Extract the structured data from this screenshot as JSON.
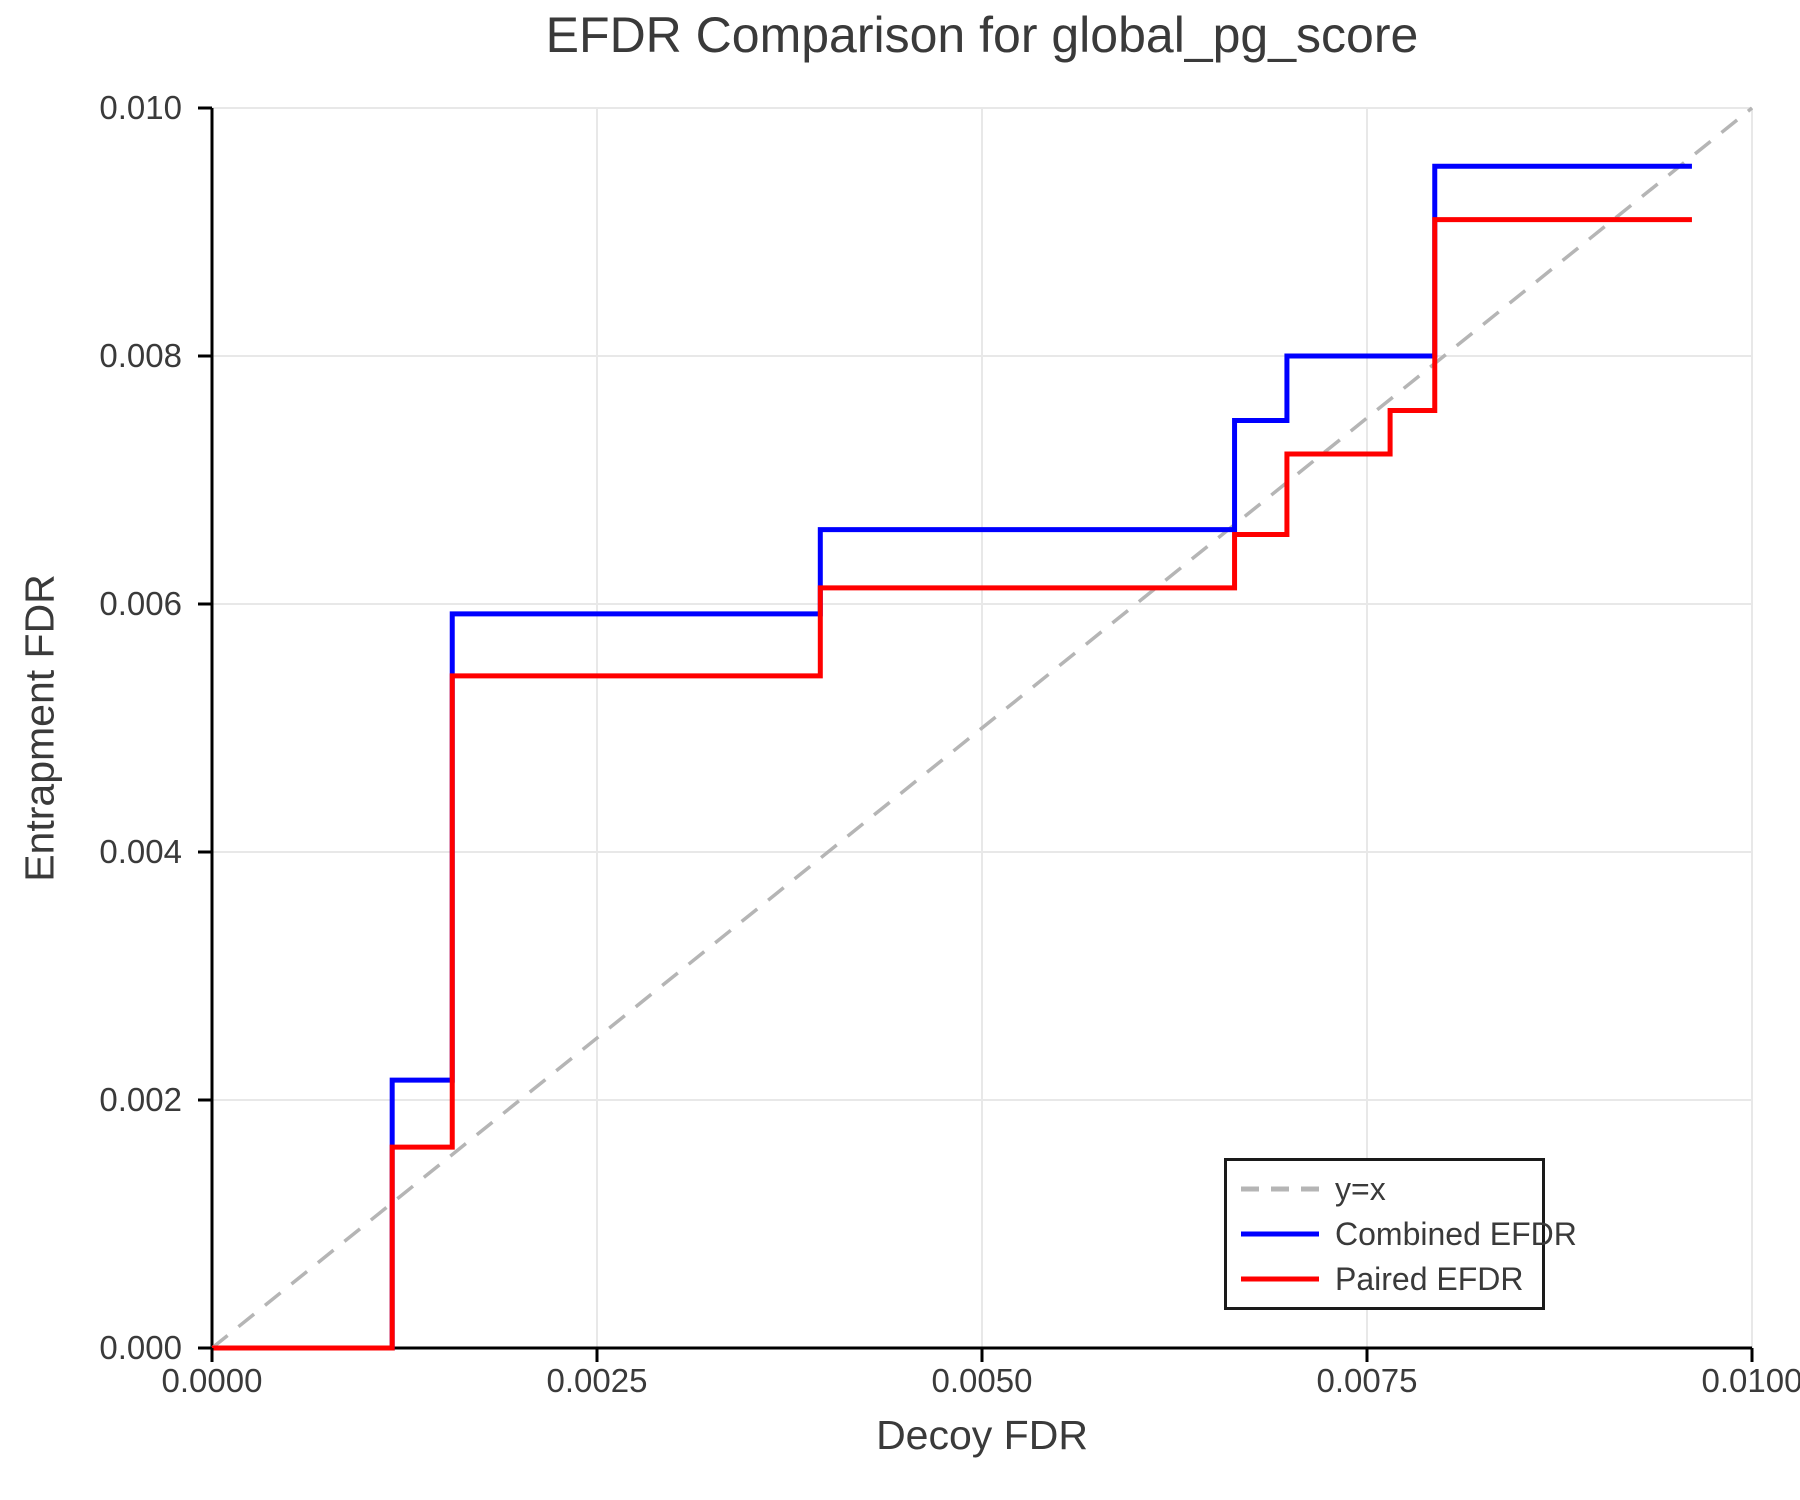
{
  "page": {
    "background": "#ffffff"
  },
  "chart_data": {
    "type": "line",
    "title": "EFDR Comparison for global_pg_score",
    "xlabel": "Decoy FDR",
    "ylabel": "Entrapment FDR",
    "xlim": [
      0.0,
      0.01
    ],
    "ylim": [
      0.0,
      0.01
    ],
    "grid": true,
    "x_ticks": [
      {
        "value": 0.0,
        "label": "0.0000"
      },
      {
        "value": 0.0025,
        "label": "0.0025"
      },
      {
        "value": 0.005,
        "label": "0.0050"
      },
      {
        "value": 0.0075,
        "label": "0.0075"
      },
      {
        "value": 0.01,
        "label": "0.0100"
      }
    ],
    "y_ticks": [
      {
        "value": 0.0,
        "label": "0.000"
      },
      {
        "value": 0.002,
        "label": "0.002"
      },
      {
        "value": 0.004,
        "label": "0.004"
      },
      {
        "value": 0.006,
        "label": "0.006"
      },
      {
        "value": 0.008,
        "label": "0.008"
      },
      {
        "value": 0.01,
        "label": "0.010"
      }
    ],
    "reference_line": {
      "name": "y=x",
      "x": [
        0.0,
        0.01
      ],
      "y": [
        0.0,
        0.01
      ],
      "style": "dashed",
      "color": "#b5b5b5"
    },
    "series": [
      {
        "name": "Combined EFDR",
        "color": "#0000ff",
        "step": "post",
        "x": [
          0.0,
          0.00117,
          0.00156,
          0.00395,
          0.00664,
          0.00698,
          0.00794,
          0.00961
        ],
        "y": [
          0.0,
          0.00216,
          0.00592,
          0.0066,
          0.00748,
          0.008,
          0.00953,
          0.00953
        ]
      },
      {
        "name": "Paired EFDR",
        "color": "#ff0000",
        "step": "post",
        "x": [
          0.0,
          0.00117,
          0.00156,
          0.00395,
          0.00664,
          0.00698,
          0.00765,
          0.00794,
          0.00961
        ],
        "y": [
          0.0,
          0.00162,
          0.00542,
          0.00613,
          0.00656,
          0.00721,
          0.00756,
          0.0091,
          0.0091
        ]
      }
    ],
    "legend": {
      "position": "lower-right",
      "entries": [
        {
          "label": "y=x",
          "color": "#b5b5b5",
          "dashed": true
        },
        {
          "label": "Combined EFDR",
          "color": "#0000ff",
          "dashed": false
        },
        {
          "label": "Paired EFDR",
          "color": "#ff0000",
          "dashed": false
        }
      ]
    },
    "styles": {
      "text_color": "#3a3a3a",
      "grid_color": "#e8e8e8",
      "spine_color": "#000000",
      "legend_border_color": "#1a1a1a"
    }
  }
}
